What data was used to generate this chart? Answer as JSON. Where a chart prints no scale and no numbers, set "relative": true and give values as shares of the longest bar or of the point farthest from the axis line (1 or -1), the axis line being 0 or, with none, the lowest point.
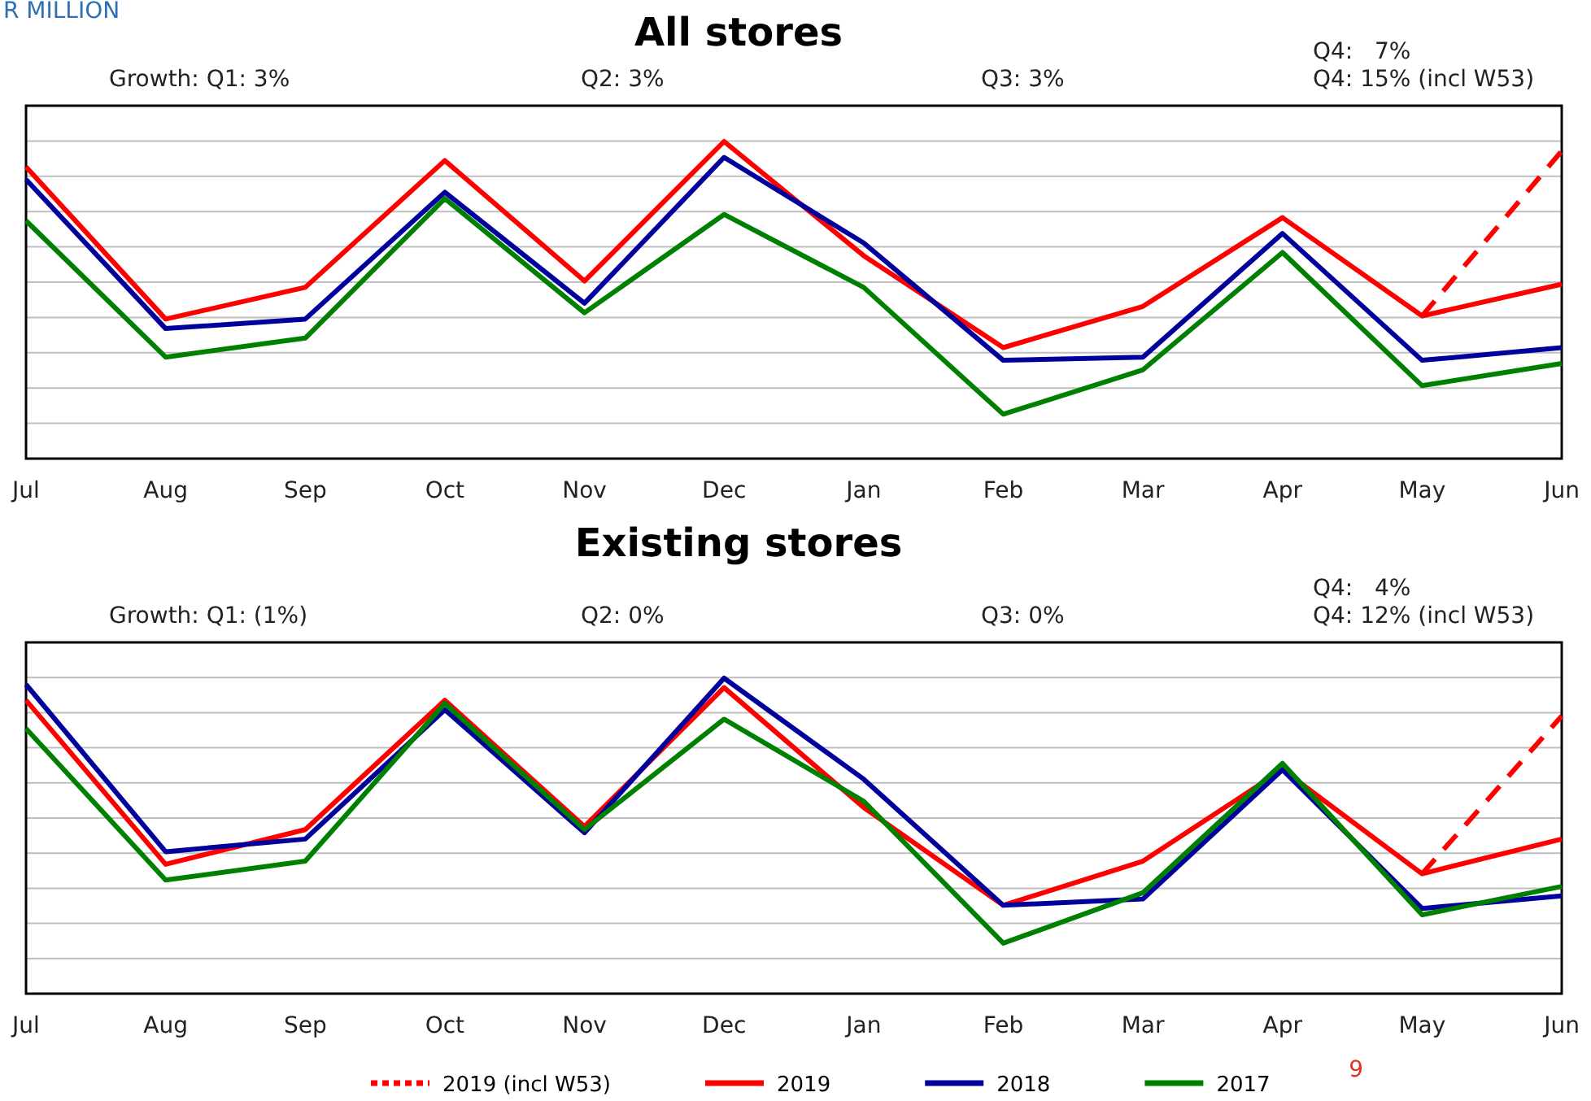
{
  "chart_data": [
    {
      "type": "line",
      "title": "All stores",
      "relative": true,
      "grid": true,
      "legend": false,
      "categories": [
        "Jul",
        "Aug",
        "Sep",
        "Oct",
        "Nov",
        "Dec",
        "Jan",
        "Feb",
        "Mar",
        "Apr",
        "May",
        "Jun"
      ],
      "annotations": [
        "Growth: Q1: 3%",
        "Q2: 3%",
        "Q3: 3%",
        "Q4:   7%",
        "Q4: 15% (incl W53)",
        "R MILLION"
      ],
      "series": [
        {
          "color": "#ff0000",
          "line_style": "dashed",
          "values": [
            null,
            null,
            null,
            null,
            null,
            null,
            null,
            null,
            null,
            null,
            0.45,
            0.97
          ]
        },
        {
          "color": "#ff0000",
          "values": [
            0.92,
            0.44,
            0.54,
            0.94,
            0.56,
            1,
            0.64,
            0.35,
            0.48,
            0.76,
            0.45,
            0.55
          ]
        },
        {
          "color": "#00009c",
          "values": [
            0.88,
            0.41,
            0.44,
            0.84,
            0.49,
            0.95,
            0.68,
            0.31,
            0.32,
            0.71,
            0.31,
            0.35
          ]
        },
        {
          "color": "#008000",
          "values": [
            0.75,
            0.32,
            0.38,
            0.82,
            0.46,
            0.77,
            0.54,
            0.14,
            0.28,
            0.65,
            0.23,
            0.3
          ]
        }
      ]
    },
    {
      "type": "line",
      "title": "Existing stores",
      "relative": true,
      "grid": true,
      "legend": "bottom",
      "categories": [
        "Jul",
        "Aug",
        "Sep",
        "Oct",
        "Nov",
        "Dec",
        "Jan",
        "Feb",
        "Mar",
        "Apr",
        "May",
        "Jun"
      ],
      "annotations": [
        "Growth: Q1: (1%)",
        "Q2: 0%",
        "Q3: 0%",
        "Q4:   4%",
        "Q4: 12% (incl W53)",
        "9"
      ],
      "series": [
        {
          "name": "2019 (incl W53)",
          "color": "#ff0000",
          "line_style": "dashed",
          "values": [
            null,
            null,
            null,
            null,
            null,
            null,
            null,
            null,
            null,
            null,
            0.38,
            0.88
          ]
        },
        {
          "name": "2019",
          "color": "#ff0000",
          "values": [
            0.93,
            0.41,
            0.52,
            0.93,
            0.53,
            0.97,
            0.59,
            0.28,
            0.42,
            0.71,
            0.38,
            0.49
          ]
        },
        {
          "name": "2018",
          "color": "#00009c",
          "values": [
            0.98,
            0.45,
            0.49,
            0.9,
            0.51,
            1,
            0.68,
            0.28,
            0.3,
            0.71,
            0.27,
            0.31
          ]
        },
        {
          "name": "2017",
          "color": "#008000",
          "values": [
            0.84,
            0.36,
            0.42,
            0.92,
            0.52,
            0.87,
            0.61,
            0.16,
            0.32,
            0.73,
            0.25,
            0.34
          ]
        }
      ]
    }
  ]
}
